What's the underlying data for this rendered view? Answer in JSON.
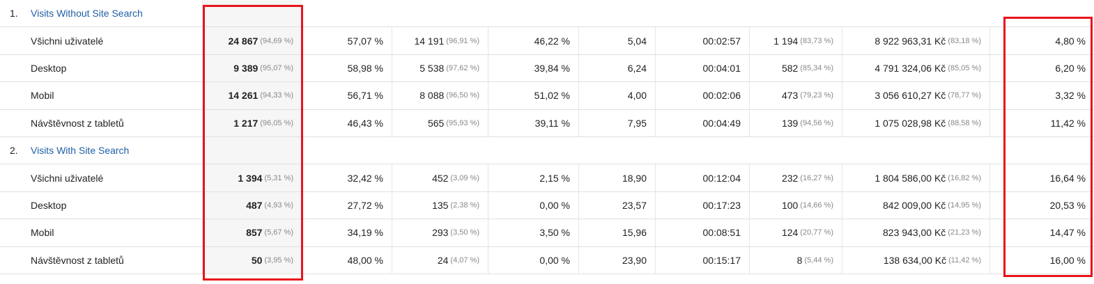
{
  "table": {
    "groups": [
      {
        "index": "1.",
        "label": "Visits Without Site Search",
        "rows": [
          {
            "name": "Všichni uživatelé",
            "cells": [
              [
                "24 867",
                "(94,69 %)"
              ],
              [
                "57,07 %"
              ],
              [
                "14 191",
                "(96,91 %)"
              ],
              [
                "46,22 %"
              ],
              [
                "5,04"
              ],
              [
                "00:02:57"
              ],
              [
                "1 194",
                "(83,73 %)"
              ],
              [
                "8 922 963,31 Kč",
                "(83,18 %)"
              ],
              [
                "4,80 %"
              ]
            ]
          },
          {
            "name": "Desktop",
            "cells": [
              [
                "9 389",
                "(95,07 %)"
              ],
              [
                "58,98 %"
              ],
              [
                "5 538",
                "(97,62 %)"
              ],
              [
                "39,84 %"
              ],
              [
                "6,24"
              ],
              [
                "00:04:01"
              ],
              [
                "582",
                "(85,34 %)"
              ],
              [
                "4 791 324,06 Kč",
                "(85,05 %)"
              ],
              [
                "6,20 %"
              ]
            ]
          },
          {
            "name": "Mobil",
            "cells": [
              [
                "14 261",
                "(94,33 %)"
              ],
              [
                "56,71 %"
              ],
              [
                "8 088",
                "(96,50 %)"
              ],
              [
                "51,02 %"
              ],
              [
                "4,00"
              ],
              [
                "00:02:06"
              ],
              [
                "473",
                "(79,23 %)"
              ],
              [
                "3 056 610,27 Kč",
                "(78,77 %)"
              ],
              [
                "3,32 %"
              ]
            ]
          },
          {
            "name": "Návštěvnost z tabletů",
            "cells": [
              [
                "1 217",
                "(96,05 %)"
              ],
              [
                "46,43 %"
              ],
              [
                "565",
                "(95,93 %)"
              ],
              [
                "39,11 %"
              ],
              [
                "7,95"
              ],
              [
                "00:04:49"
              ],
              [
                "139",
                "(94,56 %)"
              ],
              [
                "1 075 028,98 Kč",
                "(88,58 %)"
              ],
              [
                "11,42 %"
              ]
            ]
          }
        ]
      },
      {
        "index": "2.",
        "label": "Visits With Site Search",
        "rows": [
          {
            "name": "Všichni uživatelé",
            "cells": [
              [
                "1 394",
                "(5,31 %)"
              ],
              [
                "32,42 %"
              ],
              [
                "452",
                "(3,09 %)"
              ],
              [
                "2,15 %"
              ],
              [
                "18,90"
              ],
              [
                "00:12:04"
              ],
              [
                "232",
                "(16,27 %)"
              ],
              [
                "1 804 586,00 Kč",
                "(16,82 %)"
              ],
              [
                "16,64 %"
              ]
            ]
          },
          {
            "name": "Desktop",
            "cells": [
              [
                "487",
                "(4,93 %)"
              ],
              [
                "27,72 %"
              ],
              [
                "135",
                "(2,38 %)"
              ],
              [
                "0,00 %"
              ],
              [
                "23,57"
              ],
              [
                "00:17:23"
              ],
              [
                "100",
                "(14,66 %)"
              ],
              [
                "842 009,00 Kč",
                "(14,95 %)"
              ],
              [
                "20,53 %"
              ]
            ]
          },
          {
            "name": "Mobil",
            "cells": [
              [
                "857",
                "(5,67 %)"
              ],
              [
                "34,19 %"
              ],
              [
                "293",
                "(3,50 %)"
              ],
              [
                "3,50 %"
              ],
              [
                "15,96"
              ],
              [
                "00:08:51"
              ],
              [
                "124",
                "(20,77 %)"
              ],
              [
                "823 943,00 Kč",
                "(21,23 %)"
              ],
              [
                "14,47 %"
              ]
            ]
          },
          {
            "name": "Návštěvnost z tabletů",
            "cells": [
              [
                "50",
                "(3,95 %)"
              ],
              [
                "48,00 %"
              ],
              [
                "24",
                "(4,07 %)"
              ],
              [
                "0,00 %"
              ],
              [
                "23,90"
              ],
              [
                "00:15:17"
              ],
              [
                "8",
                "(5,44 %)"
              ],
              [
                "138 634,00 Kč",
                "(11,42 %)"
              ],
              [
                "16,00 %"
              ]
            ]
          }
        ]
      }
    ]
  }
}
